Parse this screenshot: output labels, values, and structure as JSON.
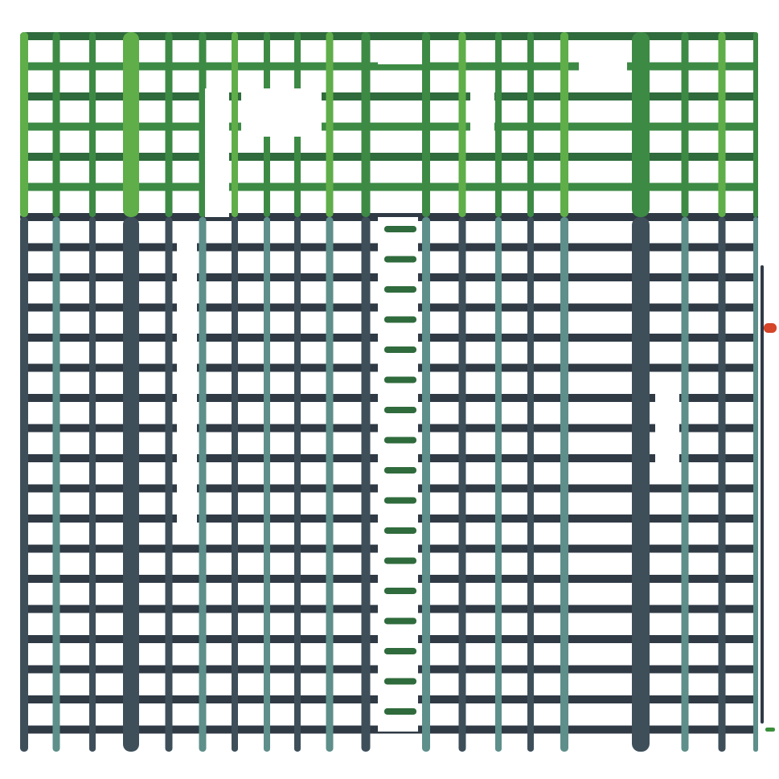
{
  "palette": {
    "background": "#ffffff",
    "green_dark": "#2f6b3c",
    "green_mid": "#3d8a45",
    "green_light": "#5fae49",
    "slate_dark": "#2f3a45",
    "slate_mid": "#3e4f5a",
    "teal_light": "#5e8f8a",
    "accent_red": "#d4452a",
    "accent_green": "#3a8f3a"
  },
  "grid": {
    "description_icon": "grid-lattice-icon"
  }
}
